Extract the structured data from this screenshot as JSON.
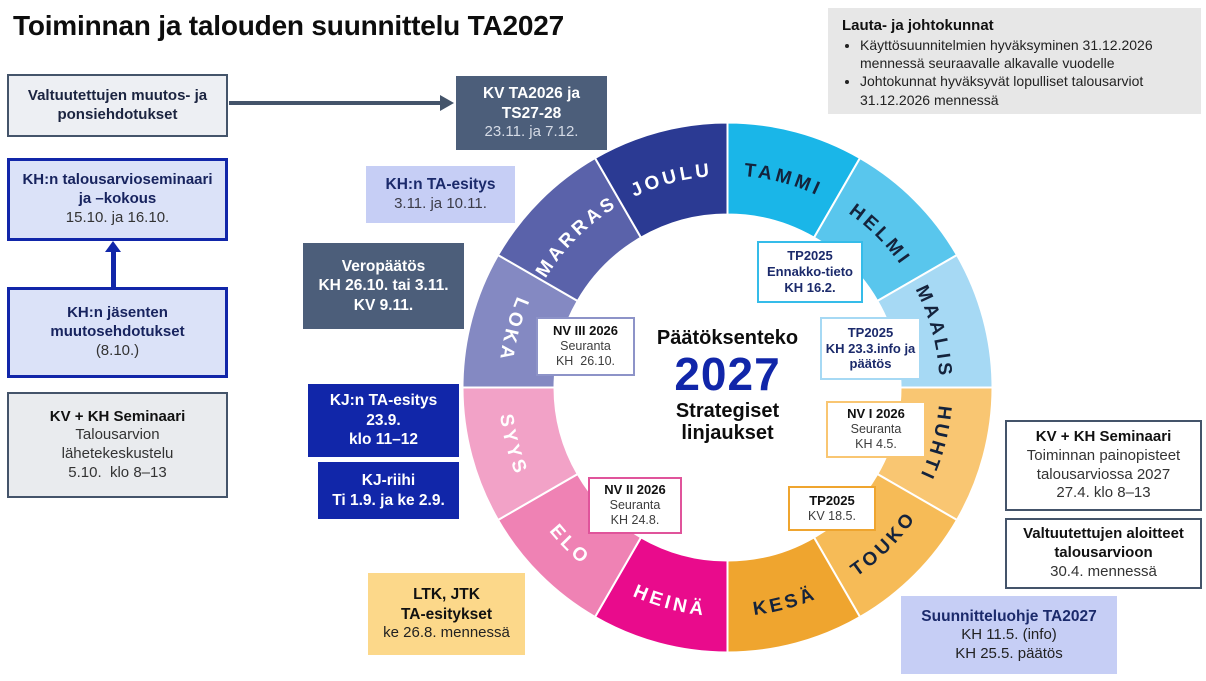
{
  "title": "Toiminnan ja talouden suunnittelu TA2027",
  "info_box": {
    "heading": "Lauta- ja johtokunnat",
    "bullets": [
      "Käyttösuunnitelmien hyväksyminen 31.12.2026 mennessä seuraavalle alkavalle vuodelle",
      "Johtokunnat hyväksyvät lopulliset talousarviot 31.12.2026 mennessä"
    ]
  },
  "boxes": {
    "valtuutettujen_muutos": {
      "lines": [
        "Valtuutettujen muutos- ja",
        "ponsiehdotukset"
      ]
    },
    "kh_talousarvioseminaari": {
      "lines": [
        "KH:n talousarvioseminaari",
        "ja –kokous",
        "15.10. ja 16.10."
      ]
    },
    "kh_jasenten": {
      "lines": [
        "KH:n jäsenten",
        "muutosehdotukset",
        "(8.10.)"
      ]
    },
    "kv_kh_seminaari_left": {
      "lines": [
        "KV + KH Seminaari",
        "Talousarvion",
        "lähetekeskustelu",
        "5.10.  klo 8–13"
      ]
    },
    "kv_ta2026": {
      "lines": [
        "KV TA2026 ja",
        "TS27-28",
        "23.11. ja 7.12."
      ]
    },
    "kh_ta_esitys": {
      "lines": [
        "KH:n TA-esitys",
        "3.11. ja 10.11."
      ]
    },
    "veropaatos": {
      "lines": [
        "Veropäätös",
        "KH 26.10. tai 3.11.",
        "KV 9.11."
      ]
    },
    "kj_ta_esitys": {
      "lines": [
        "KJ:n TA-esitys",
        "23.9.",
        "klo 11–12"
      ]
    },
    "kj_riihi": {
      "lines": [
        "KJ-riihi",
        "Ti 1.9. ja ke 2.9."
      ]
    },
    "ltk_jtk": {
      "lines": [
        "LTK, JTK",
        "TA-esitykset",
        "ke 26.8. mennessä"
      ]
    },
    "kv_kh_seminaari_right": {
      "lines": [
        "KV + KH Seminaari",
        "Toiminnan painopisteet",
        "talousarviossa 2027",
        "27.4. klo 8–13"
      ]
    },
    "valtuutettujen_aloitteet": {
      "lines": [
        "Valtuutettujen aloitteet",
        "talousarvioon",
        "30.4. mennessä"
      ]
    },
    "suunnitteluohje": {
      "lines": [
        "Suunnitteluohje TA2027",
        "KH 11.5. (info)",
        "KH 25.5. päätös"
      ]
    }
  },
  "milestones": {
    "nv3": {
      "lines": [
        "NV III 2026",
        "Seuranta",
        "KH  26.10."
      ],
      "border": "#8d93c8"
    },
    "tp_ennakko": {
      "lines": [
        "TP2025",
        "Ennakko-tieto",
        "KH 16.2."
      ],
      "border": "#35bce9"
    },
    "tp_info": {
      "lines": [
        "TP2025",
        "KH 23.3.info ja",
        "päätös"
      ],
      "border": "#a6d9f4"
    },
    "nv1": {
      "lines": [
        "NV I 2026",
        "Seuranta",
        "KH 4.5."
      ],
      "border": "#f9c672"
    },
    "tp_kv": {
      "lines": [
        "TP2025",
        "KV 18.5."
      ],
      "border": "#efa52f"
    },
    "nv2": {
      "lines": [
        "NV II 2026",
        "Seuranta",
        "KH 24.8."
      ],
      "border": "#e0549b"
    }
  },
  "wheel": {
    "center": {
      "line1": "Päätöksenteko",
      "year": "2027",
      "line2a": "Strategiset",
      "line2b": "linjaukset",
      "year_color": "#1126a9"
    },
    "months": [
      {
        "name": "TAMMI",
        "color": "#1ab6e8",
        "text_color": "#14233c",
        "flipped": false
      },
      {
        "name": "HELMI",
        "color": "#59c6ed",
        "text_color": "#14233c",
        "flipped": false
      },
      {
        "name": "MAALIS",
        "color": "#a6d9f4",
        "text_color": "#14233c",
        "flipped": false
      },
      {
        "name": "HUHTI",
        "color": "#f9c672",
        "text_color": "#14233c",
        "flipped": false
      },
      {
        "name": "TOUKO",
        "color": "#f6bb57",
        "text_color": "#14233c",
        "flipped": true
      },
      {
        "name": "KESÄ",
        "color": "#efa52f",
        "text_color": "#14233c",
        "flipped": true
      },
      {
        "name": "HEINÄ",
        "color": "#e90b8c",
        "text_color": "#ffffff",
        "flipped": true
      },
      {
        "name": "ELO",
        "color": "#ef82b4",
        "text_color": "#ffffff",
        "flipped": true
      },
      {
        "name": "SYYS",
        "color": "#f2a2c7",
        "text_color": "#ffffff",
        "flipped": true
      },
      {
        "name": "LOKA",
        "color": "#8489c2",
        "text_color": "#ffffff",
        "flipped": true
      },
      {
        "name": "MARRAS",
        "color": "#5a62aa",
        "text_color": "#ffffff",
        "flipped": false
      },
      {
        "name": "JOULU",
        "color": "#2b3a93",
        "text_color": "#ffffff",
        "flipped": false
      }
    ]
  },
  "colors": {
    "slate_box": "#4c5e7a",
    "navy_box": "#1126a9",
    "periwinkle_box": "#c6cef5",
    "lavender_box": "#dbe2f8",
    "amber_box": "#fcd88a",
    "grey_info_box": "#e7e7e7"
  }
}
